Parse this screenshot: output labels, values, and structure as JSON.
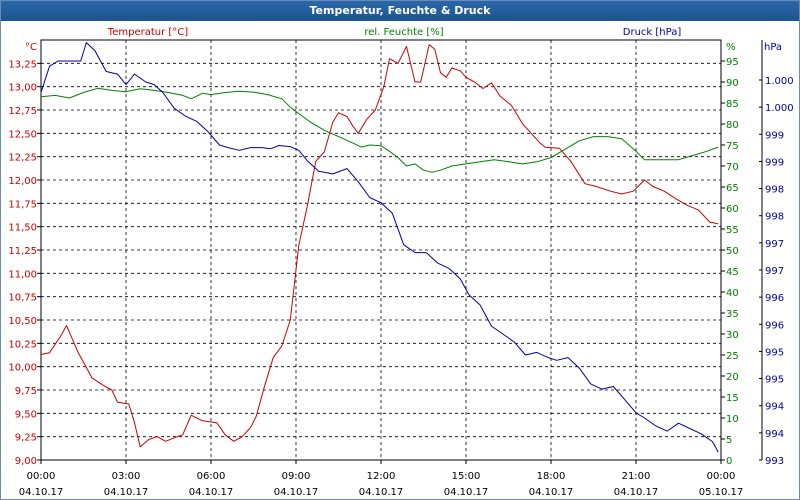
{
  "window": {
    "title": "Temperatur, Feuchte & Druck"
  },
  "chart_data": {
    "type": "line",
    "title": "Temperatur, Feuchte & Druck",
    "colors": {
      "temperature": "#cc0000",
      "humidity": "#008000",
      "pressure": "#0000a0"
    },
    "legend_labels": {
      "temperature": "Temperatur [°C]",
      "humidity": "rel. Feuchte [%]",
      "pressure": "Druck [hPa]"
    },
    "axes": {
      "temperature": {
        "unit": "°C",
        "min": 9.0,
        "max": 13.5,
        "ticks": [
          "9,00",
          "9,25",
          "9,50",
          "9,75",
          "10,00",
          "10,25",
          "10,50",
          "10,75",
          "11,00",
          "11,25",
          "11,50",
          "11,75",
          "12,00",
          "12,25",
          "12,50",
          "12,75",
          "13,00",
          "13,25"
        ]
      },
      "humidity": {
        "unit": "%",
        "min": 0,
        "max": 100,
        "ticks": [
          "0",
          "5",
          "10",
          "15",
          "20",
          "25",
          "30",
          "35",
          "40",
          "45",
          "50",
          "55",
          "60",
          "65",
          "70",
          "75",
          "80",
          "85",
          "90",
          "95"
        ]
      },
      "pressure": {
        "unit": "hPa",
        "min": 993.0,
        "max": 1001.0,
        "ticks": [
          "993",
          "994",
          "994",
          "995",
          "995",
          "996",
          "996",
          "997",
          "997",
          "998",
          "998",
          "999",
          "999",
          "1.000",
          "1.000"
        ]
      },
      "x": {
        "min": 0,
        "max": 24,
        "ticks": [
          {
            "time": "00:00",
            "date": "04.10.17"
          },
          {
            "time": "03:00",
            "date": "04.10.17"
          },
          {
            "time": "06:00",
            "date": "04.10.17"
          },
          {
            "time": "09:00",
            "date": "04.10.17"
          },
          {
            "time": "12:00",
            "date": "04.10.17"
          },
          {
            "time": "15:00",
            "date": "04.10.17"
          },
          {
            "time": "18:00",
            "date": "04.10.17"
          },
          {
            "time": "21:00",
            "date": "04.10.17"
          },
          {
            "time": "00:00",
            "date": "05.10.17"
          }
        ]
      }
    },
    "grid": true,
    "series": [
      {
        "key": "temperature",
        "name": "Temperatur [°C]",
        "points": [
          [
            0.0,
            10.13
          ],
          [
            0.3,
            10.15
          ],
          [
            0.7,
            10.33
          ],
          [
            0.9,
            10.44
          ],
          [
            1.3,
            10.16
          ],
          [
            1.8,
            9.88
          ],
          [
            2.2,
            9.8
          ],
          [
            2.5,
            9.75
          ],
          [
            2.7,
            9.62
          ],
          [
            3.1,
            9.6
          ],
          [
            3.3,
            9.4
          ],
          [
            3.5,
            9.14
          ],
          [
            3.8,
            9.22
          ],
          [
            4.1,
            9.25
          ],
          [
            4.4,
            9.2
          ],
          [
            4.8,
            9.25
          ],
          [
            5.0,
            9.27
          ],
          [
            5.3,
            9.48
          ],
          [
            5.7,
            9.42
          ],
          [
            6.2,
            9.4
          ],
          [
            6.5,
            9.27
          ],
          [
            6.8,
            9.2
          ],
          [
            7.1,
            9.25
          ],
          [
            7.4,
            9.35
          ],
          [
            7.6,
            9.47
          ],
          [
            7.9,
            9.8
          ],
          [
            8.2,
            10.1
          ],
          [
            8.5,
            10.22
          ],
          [
            8.8,
            10.5
          ],
          [
            9.1,
            11.3
          ],
          [
            9.4,
            11.72
          ],
          [
            9.7,
            12.2
          ],
          [
            10.0,
            12.3
          ],
          [
            10.3,
            12.62
          ],
          [
            10.5,
            12.72
          ],
          [
            10.8,
            12.68
          ],
          [
            11.0,
            12.58
          ],
          [
            11.2,
            12.5
          ],
          [
            11.5,
            12.65
          ],
          [
            11.8,
            12.75
          ],
          [
            12.1,
            13.0
          ],
          [
            12.3,
            13.3
          ],
          [
            12.6,
            13.25
          ],
          [
            12.9,
            13.43
          ],
          [
            13.2,
            13.05
          ],
          [
            13.4,
            13.05
          ],
          [
            13.7,
            13.45
          ],
          [
            13.9,
            13.4
          ],
          [
            14.1,
            13.15
          ],
          [
            14.3,
            13.1
          ],
          [
            14.5,
            13.2
          ],
          [
            14.8,
            13.17
          ],
          [
            15.0,
            13.1
          ],
          [
            15.3,
            13.05
          ],
          [
            15.6,
            12.98
          ],
          [
            15.9,
            13.04
          ],
          [
            16.2,
            12.9
          ],
          [
            16.6,
            12.8
          ],
          [
            17.0,
            12.6
          ],
          [
            17.3,
            12.5
          ],
          [
            17.6,
            12.4
          ],
          [
            17.8,
            12.35
          ],
          [
            18.3,
            12.34
          ],
          [
            18.7,
            12.2
          ],
          [
            19.2,
            11.96
          ],
          [
            19.6,
            11.93
          ],
          [
            20.1,
            11.88
          ],
          [
            20.5,
            11.85
          ],
          [
            20.9,
            11.88
          ],
          [
            21.3,
            12.0
          ],
          [
            21.6,
            11.93
          ],
          [
            22.0,
            11.88
          ],
          [
            22.4,
            11.8
          ],
          [
            22.8,
            11.73
          ],
          [
            23.2,
            11.68
          ],
          [
            23.6,
            11.55
          ],
          [
            23.9,
            11.53
          ]
        ]
      },
      {
        "key": "humidity",
        "name": "rel. Feuchte [%]",
        "points": [
          [
            0.0,
            86.5
          ],
          [
            0.5,
            86.8
          ],
          [
            1.0,
            86.2
          ],
          [
            1.5,
            87.5
          ],
          [
            2.0,
            88.5
          ],
          [
            2.5,
            88.0
          ],
          [
            3.0,
            87.7
          ],
          [
            3.5,
            88.4
          ],
          [
            4.0,
            88.0
          ],
          [
            4.5,
            87.5
          ],
          [
            5.0,
            86.8
          ],
          [
            5.3,
            86.0
          ],
          [
            5.7,
            87.3
          ],
          [
            6.0,
            87.0
          ],
          [
            6.5,
            87.5
          ],
          [
            7.0,
            87.8
          ],
          [
            7.5,
            87.6
          ],
          [
            8.0,
            87.0
          ],
          [
            8.5,
            86.0
          ],
          [
            8.8,
            84.0
          ],
          [
            9.1,
            82.5
          ],
          [
            9.5,
            80.5
          ],
          [
            10.0,
            78.5
          ],
          [
            10.5,
            77.0
          ],
          [
            11.0,
            75.5
          ],
          [
            11.3,
            74.5
          ],
          [
            11.6,
            75.0
          ],
          [
            12.0,
            74.8
          ],
          [
            12.3,
            73.5
          ],
          [
            12.6,
            72.0
          ],
          [
            12.9,
            70.0
          ],
          [
            13.2,
            70.5
          ],
          [
            13.5,
            69.0
          ],
          [
            13.8,
            68.5
          ],
          [
            14.1,
            69.0
          ],
          [
            14.5,
            70.0
          ],
          [
            15.0,
            70.5
          ],
          [
            15.5,
            71.0
          ],
          [
            16.0,
            71.5
          ],
          [
            16.5,
            71.0
          ],
          [
            17.0,
            70.5
          ],
          [
            17.5,
            71.0
          ],
          [
            18.0,
            72.0
          ],
          [
            18.5,
            74.0
          ],
          [
            19.0,
            76.0
          ],
          [
            19.5,
            77.0
          ],
          [
            20.0,
            77.0
          ],
          [
            20.5,
            76.5
          ],
          [
            21.0,
            73.5
          ],
          [
            21.3,
            71.5
          ],
          [
            22.0,
            71.5
          ],
          [
            22.5,
            71.5
          ],
          [
            23.0,
            72.5
          ],
          [
            23.5,
            73.5
          ],
          [
            23.9,
            74.5
          ]
        ]
      },
      {
        "key": "pressure",
        "name": "Druck [hPa]",
        "points": [
          [
            0.0,
            1000.0
          ],
          [
            0.3,
            1000.5
          ],
          [
            0.6,
            1000.6
          ],
          [
            1.0,
            1000.6
          ],
          [
            1.4,
            1000.6
          ],
          [
            1.6,
            1000.95
          ],
          [
            1.9,
            1000.8
          ],
          [
            2.3,
            1000.4
          ],
          [
            2.7,
            1000.35
          ],
          [
            3.0,
            1000.15
          ],
          [
            3.3,
            1000.35
          ],
          [
            3.7,
            1000.2
          ],
          [
            4.0,
            1000.15
          ],
          [
            4.3,
            1000.0
          ],
          [
            4.7,
            999.7
          ],
          [
            5.1,
            999.55
          ],
          [
            5.5,
            999.45
          ],
          [
            5.9,
            999.25
          ],
          [
            6.3,
            999.0
          ],
          [
            6.6,
            998.95
          ],
          [
            7.0,
            998.9
          ],
          [
            7.4,
            998.95
          ],
          [
            7.8,
            998.95
          ],
          [
            8.1,
            998.93
          ],
          [
            8.4,
            998.99
          ],
          [
            8.8,
            998.97
          ],
          [
            9.1,
            998.9
          ],
          [
            9.4,
            998.7
          ],
          [
            9.8,
            998.5
          ],
          [
            10.3,
            998.45
          ],
          [
            10.8,
            998.55
          ],
          [
            11.2,
            998.3
          ],
          [
            11.6,
            998.0
          ],
          [
            12.0,
            997.9
          ],
          [
            12.4,
            997.7
          ],
          [
            12.8,
            997.1
          ],
          [
            13.2,
            996.95
          ],
          [
            13.6,
            996.95
          ],
          [
            14.0,
            996.75
          ],
          [
            14.4,
            996.65
          ],
          [
            14.8,
            996.45
          ],
          [
            15.1,
            996.15
          ],
          [
            15.5,
            995.95
          ],
          [
            15.9,
            995.55
          ],
          [
            16.3,
            995.4
          ],
          [
            16.7,
            995.25
          ],
          [
            17.1,
            995.0
          ],
          [
            17.5,
            995.05
          ],
          [
            17.9,
            994.95
          ],
          [
            18.2,
            994.9
          ],
          [
            18.6,
            994.95
          ],
          [
            19.0,
            994.75
          ],
          [
            19.4,
            994.45
          ],
          [
            19.8,
            994.35
          ],
          [
            20.2,
            994.4
          ],
          [
            20.6,
            994.15
          ],
          [
            21.0,
            993.9
          ],
          [
            21.3,
            993.8
          ],
          [
            21.7,
            993.65
          ],
          [
            22.1,
            993.55
          ],
          [
            22.5,
            993.7
          ],
          [
            22.9,
            993.6
          ],
          [
            23.3,
            993.5
          ],
          [
            23.7,
            993.35
          ],
          [
            23.9,
            993.15
          ]
        ]
      }
    ]
  }
}
